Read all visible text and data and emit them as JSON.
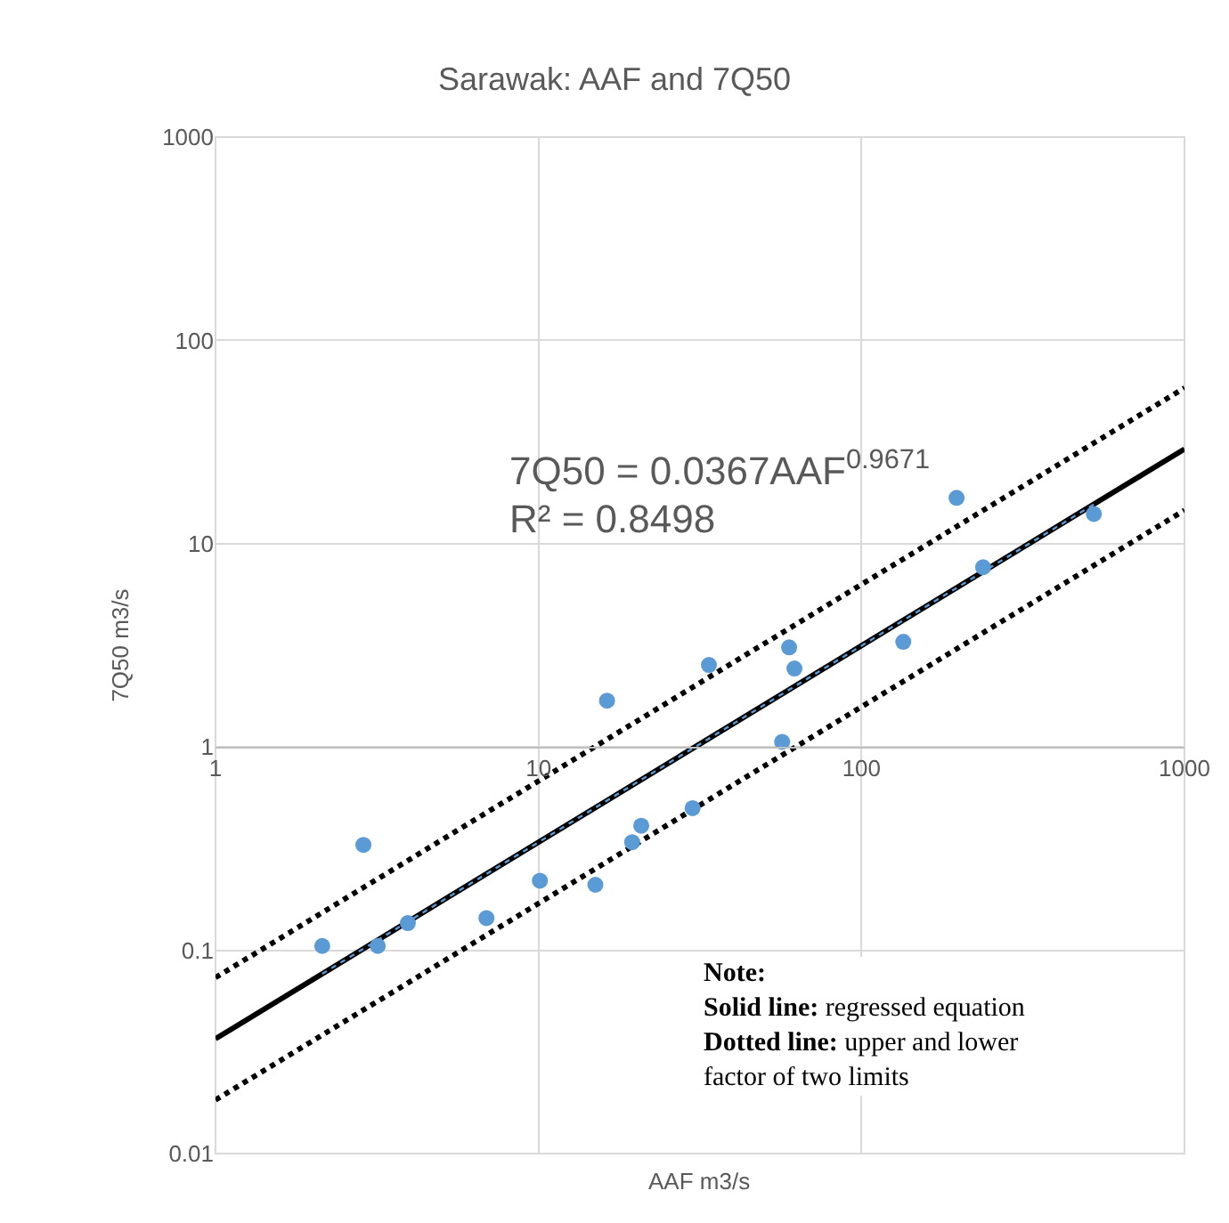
{
  "chart_data": {
    "type": "scatter",
    "title": "Sarawak: AAF and 7Q50",
    "xlabel": "AAF m3/s",
    "ylabel": "7Q50 m3/s",
    "log": "xy",
    "grid": true,
    "xlim": [
      1,
      1000
    ],
    "xticks": [
      1,
      10,
      100,
      1000
    ],
    "ylim": [
      0.01,
      1000
    ],
    "yticks": [
      0.01,
      0.1,
      1,
      10,
      100,
      1000
    ],
    "series": [
      {
        "type": "line",
        "color": "#000000",
        "line_style": "dotted",
        "x": [
          1,
          1000
        ],
        "values": [
          0.0734,
          58.4
        ]
      },
      {
        "type": "line",
        "color": "#000000",
        "line_style": "dotted",
        "x": [
          1,
          1000
        ],
        "values": [
          0.01835,
          14.6
        ]
      },
      {
        "type": "line",
        "color": "#000000",
        "line_style": "solid",
        "x": [
          1,
          1000
        ],
        "values": [
          0.0367,
          29.2
        ]
      },
      {
        "color": "#5b9bd5",
        "marker": "circle",
        "x": [
          2.14,
          2.87,
          3.18,
          3.94,
          6.9,
          10.1,
          15.0,
          16.3,
          19.5,
          20.8,
          30,
          33.7,
          56.8,
          59.7,
          62,
          134.7,
          197,
          238,
          524
        ],
        "values": [
          0.105,
          0.33,
          0.105,
          0.136,
          0.144,
          0.22,
          0.21,
          1.69,
          0.34,
          0.41,
          0.5,
          2.53,
          1.06,
          3.09,
          2.43,
          3.29,
          16.8,
          7.66,
          14.0
        ]
      },
      {
        "type": "line",
        "color": "#5b9bd5",
        "line_style": "dotted",
        "x": [
          2.14,
          524
        ],
        "values": [
          0.0766,
          15.6
        ]
      }
    ],
    "annotations": [
      "7Q50 = 0.0367AAF$^{0.9671}$",
      "R² = 0.8498",
      "Note:",
      "Solid line: regressed equation",
      "Dotted line: upper and lower",
      "factor of two limits"
    ]
  }
}
